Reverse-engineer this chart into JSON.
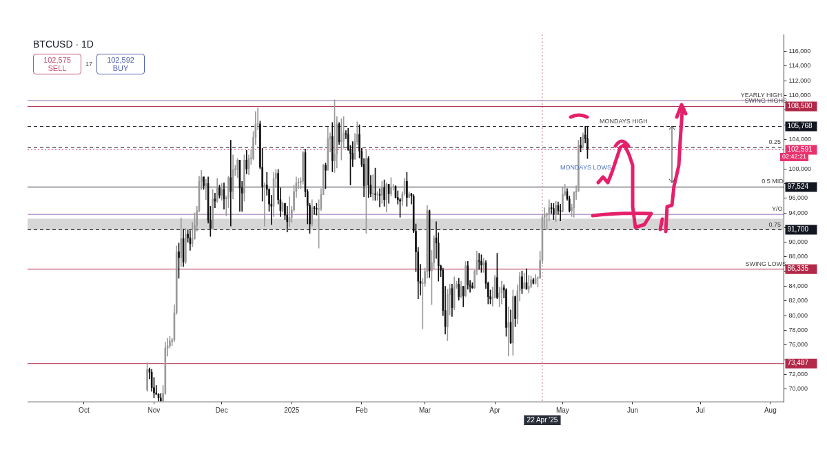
{
  "chart_data": {
    "type": "candlestick",
    "title": "BTCUSD · 1D",
    "annotations": [
      "102,575 SELL",
      "17",
      "102,592 BUY",
      "MONDAYS LOWS",
      "02:42:21",
      {
        "text": "MONDAYS HIGH",
        "x": "2025-05-28",
        "y": 105768
      },
      {
        "text": "YEARLY HIGH",
        "x": "2025-07-28",
        "y": 109300
      },
      {
        "text": "SWING HIGHS",
        "x": "2025-07-30",
        "y": 108500
      },
      {
        "text": "0.25",
        "x": "2025-08-03",
        "y": 102900
      },
      {
        "text": "0.5 MID",
        "x": "2025-08-02",
        "y": 97524
      },
      {
        "text": "Y/O",
        "x": "2025-08-04",
        "y": 93800
      },
      {
        "text": "0.75",
        "x": "2025-08-03",
        "y": 91700
      },
      {
        "text": "SWING LOWS",
        "x": "2025-07-30",
        "y": 86335
      }
    ],
    "xlim": [
      "2024-09-06",
      "2025-08-07"
    ],
    "xticks": [
      {
        "value": "2024-10-01",
        "label": "Oct"
      },
      {
        "value": "2024-11-01",
        "label": "Nov"
      },
      {
        "value": "2024-12-01",
        "label": "Dec"
      },
      {
        "value": "2025-01-01",
        "label": "2025"
      },
      {
        "value": "2025-02-01",
        "label": "Feb"
      },
      {
        "value": "2025-03-01",
        "label": "Mar"
      },
      {
        "value": "2025-04-01",
        "label": "Apr"
      },
      {
        "value": "2025-05-01",
        "label": "May"
      },
      {
        "value": "2025-06-01",
        "label": "Jun"
      },
      {
        "value": "2025-07-01",
        "label": "Jul"
      },
      {
        "value": "2025-08-01",
        "label": "Aug"
      }
    ],
    "ylim": [
      68300,
      118300
    ],
    "yticks": [
      {
        "value": 70000,
        "label": "70,000"
      },
      {
        "value": 72000,
        "label": "72,000"
      },
      {
        "value": 74000,
        "label": null
      },
      {
        "value": 76000,
        "label": "76,000"
      },
      {
        "value": 78000,
        "label": "78,000"
      },
      {
        "value": 80000,
        "label": "80,000"
      },
      {
        "value": 82000,
        "label": "82,000"
      },
      {
        "value": 84000,
        "label": "84,000"
      },
      {
        "value": 86000,
        "label": null
      },
      {
        "value": 88000,
        "label": "88,000"
      },
      {
        "value": 90000,
        "label": "90,000"
      },
      {
        "value": 92000,
        "label": null
      },
      {
        "value": 94000,
        "label": "94,000"
      },
      {
        "value": 96000,
        "label": "96,000"
      },
      {
        "value": 98000,
        "label": null
      },
      {
        "value": 100000,
        "label": "100,000"
      },
      {
        "value": 102000,
        "label": null
      },
      {
        "value": 104000,
        "label": "104,000"
      },
      {
        "value": 106000,
        "label": null
      },
      {
        "value": 108000,
        "label": null
      },
      {
        "value": 110000,
        "label": "110,000"
      },
      {
        "value": 112000,
        "label": "112,000"
      },
      {
        "value": 114000,
        "label": "114,000"
      },
      {
        "value": 116000,
        "label": "116,000"
      }
    ],
    "grid": false,
    "legend": false,
    "ref_lines": [
      {
        "axis": "y",
        "value": 109300,
        "color": "#9c6fb5",
        "line_style": "solid"
      },
      {
        "axis": "y",
        "value": 108500,
        "label": "108,500",
        "color": "#b22848",
        "line_style": "solid"
      },
      {
        "axis": "y",
        "value": 105768,
        "label": "105,768",
        "color": "#131722",
        "line_style": "dashed"
      },
      {
        "axis": "y",
        "value": 102900,
        "color": "#222222",
        "line_style": "dashed"
      },
      {
        "axis": "y",
        "value": 102591,
        "label": "102,591",
        "color": "#e8326e",
        "line_style": "dotted"
      },
      {
        "axis": "y",
        "value": 97524,
        "label": "97,524",
        "color": "#131722",
        "line_style": "solid"
      },
      {
        "axis": "y",
        "value": 93800,
        "color": "#9c6fb5",
        "line_style": "solid"
      },
      {
        "axis": "y",
        "value": 91700,
        "label": "91,700",
        "color": "#131722",
        "line_style": "dashed"
      },
      {
        "axis": "y",
        "value": 86335,
        "label": "86,335",
        "color": "#b22848",
        "line_style": "solid"
      },
      {
        "axis": "y",
        "value": 73487,
        "label": "73,487",
        "color": "#b22848",
        "line_style": "solid"
      },
      {
        "axis": "x",
        "value": "2025-04-22",
        "label": "22 Apr '25",
        "color": "#c07090",
        "line_style": "dotted"
      }
    ],
    "bands": [
      {
        "axis": "y",
        "from": 91700,
        "to": 93200,
        "color": "#d6d6d6"
      }
    ],
    "series": [
      {
        "colors": [
          "#9a9a9a",
          "#111111",
          "#111111",
          "#111111",
          "#111111",
          "#111111",
          "#111111",
          "#9a9a9a",
          "#9a9a9a",
          "#9a9a9a",
          "#9a9a9a",
          "#9a9a9a",
          "#9a9a9a",
          "#9a9a9a",
          "#111111",
          "#9a9a9a",
          "#111111",
          "#9a9a9a",
          "#111111",
          "#111111",
          "#9a9a9a",
          "#9a9a9a",
          "#9a9a9a",
          "#9a9a9a",
          "#9a9a9a",
          "#111111",
          "#9a9a9a",
          "#111111",
          "#111111",
          "#9a9a9a",
          "#111111",
          "#9a9a9a",
          "#111111",
          "#9a9a9a",
          "#111111",
          "#9a9a9a",
          "#9a9a9a",
          "#111111",
          "#9a9a9a",
          "#9a9a9a",
          "#9a9a9a",
          "#111111",
          "#111111",
          "#9a9a9a",
          "#111111",
          "#9a9a9a",
          "#9a9a9a",
          "#9a9a9a",
          "#9a9a9a",
          "#9a9a9a",
          "#111111",
          "#111111",
          "#9a9a9a",
          "#111111",
          "#111111",
          "#111111",
          "#9a9a9a",
          "#9a9a9a",
          "#111111",
          "#111111",
          "#9a9a9a",
          "#111111",
          "#111111",
          "#9a9a9a",
          "#9a9a9a",
          "#9a9a9a",
          "#9a9a9a",
          "#9a9a9a",
          "#9a9a9a",
          "#9a9a9a",
          "#111111",
          "#111111",
          "#111111",
          "#9a9a9a",
          "#111111",
          "#111111",
          "#9a9a9a",
          "#9a9a9a",
          "#9a9a9a",
          "#111111",
          "#9a9a9a",
          "#9a9a9a",
          "#111111",
          "#9a9a9a",
          "#9a9a9a",
          "#111111",
          "#9a9a9a",
          "#9a9a9a",
          "#111111",
          "#111111",
          "#111111",
          "#111111",
          "#9a9a9a",
          "#9a9a9a",
          "#111111",
          "#111111",
          "#111111",
          "#9a9a9a",
          "#111111",
          "#111111",
          "#9a9a9a",
          "#111111",
          "#9a9a9a",
          "#111111",
          "#9a9a9a",
          "#111111",
          "#9a9a9a",
          "#111111",
          "#9a9a9a",
          "#9a9a9a",
          "#111111",
          "#111111",
          "#111111",
          "#9a9a9a",
          "#9a9a9a",
          "#111111",
          "#9a9a9a",
          "#111111",
          "#111111",
          "#111111",
          "#111111",
          "#111111",
          "#9a9a9a",
          "#9a9a9a",
          "#9a9a9a",
          "#111111",
          "#9a9a9a",
          "#9a9a9a",
          "#111111",
          "#111111",
          "#111111",
          "#111111",
          "#111111",
          "#9a9a9a",
          "#9a9a9a",
          "#111111",
          "#9a9a9a",
          "#9a9a9a",
          "#111111",
          "#9a9a9a",
          "#111111",
          "#9a9a9a",
          "#111111",
          "#111111",
          "#111111",
          "#9a9a9a",
          "#9a9a9a",
          "#111111",
          "#111111",
          "#9a9a9a",
          "#111111",
          "#111111",
          "#111111",
          "#9a9a9a",
          "#9a9a9a",
          "#111111",
          "#9a9a9a",
          "#9a9a9a",
          "#111111",
          "#111111",
          "#9a9a9a",
          "#111111",
          "#9a9a9a",
          "#111111",
          "#9a9a9a",
          "#9a9a9a",
          "#111111",
          "#9a9a9a",
          "#111111",
          "#9a9a9a",
          "#9a9a9a",
          "#111111",
          "#9a9a9a",
          "#9a9a9a",
          "#9a9a9a",
          "#9a9a9a",
          "#9a9a9a",
          "#9a9a9a",
          "#9a9a9a",
          "#111111",
          "#111111",
          "#9a9a9a",
          "#111111",
          "#111111",
          "#9a9a9a",
          "#9a9a9a",
          "#111111",
          "#111111",
          "#9a9a9a",
          "#9a9a9a",
          "#9a9a9a",
          "#9a9a9a",
          "#111111",
          "#9a9a9a",
          "#111111",
          "#111111"
        ],
        "x": [
          "2024-10-29",
          "2024-10-30",
          "2024-10-31",
          "2024-11-01",
          "2024-11-02",
          "2024-11-03",
          "2024-11-04",
          "2024-11-05",
          "2024-11-06",
          "2024-11-07",
          "2024-11-08",
          "2024-11-09",
          "2024-11-10",
          "2024-11-11",
          "2024-11-12",
          "2024-11-13",
          "2024-11-14",
          "2024-11-15",
          "2024-11-16",
          "2024-11-17",
          "2024-11-18",
          "2024-11-19",
          "2024-11-20",
          "2024-11-21",
          "2024-11-22",
          "2024-11-23",
          "2024-11-24",
          "2024-11-25",
          "2024-11-26",
          "2024-11-27",
          "2024-11-28",
          "2024-11-29",
          "2024-11-30",
          "2024-12-01",
          "2024-12-02",
          "2024-12-03",
          "2024-12-04",
          "2024-12-05",
          "2024-12-06",
          "2024-12-07",
          "2024-12-08",
          "2024-12-09",
          "2024-12-10",
          "2024-12-11",
          "2024-12-12",
          "2024-12-13",
          "2024-12-14",
          "2024-12-15",
          "2024-12-16",
          "2024-12-17",
          "2024-12-18",
          "2024-12-19",
          "2024-12-20",
          "2024-12-21",
          "2024-12-22",
          "2024-12-23",
          "2024-12-24",
          "2024-12-25",
          "2024-12-26",
          "2024-12-27",
          "2024-12-28",
          "2024-12-29",
          "2024-12-30",
          "2024-12-31",
          "2025-01-01",
          "2025-01-02",
          "2025-01-03",
          "2025-01-04",
          "2025-01-05",
          "2025-01-06",
          "2025-01-07",
          "2025-01-08",
          "2025-01-09",
          "2025-01-10",
          "2025-01-11",
          "2025-01-12",
          "2025-01-13",
          "2025-01-14",
          "2025-01-15",
          "2025-01-16",
          "2025-01-17",
          "2025-01-18",
          "2025-01-19",
          "2025-01-20",
          "2025-01-21",
          "2025-01-22",
          "2025-01-23",
          "2025-01-24",
          "2025-01-25",
          "2025-01-26",
          "2025-01-27",
          "2025-01-28",
          "2025-01-29",
          "2025-01-30",
          "2025-01-31",
          "2025-02-01",
          "2025-02-02",
          "2025-02-03",
          "2025-02-04",
          "2025-02-05",
          "2025-02-06",
          "2025-02-07",
          "2025-02-08",
          "2025-02-09",
          "2025-02-10",
          "2025-02-11",
          "2025-02-12",
          "2025-02-13",
          "2025-02-14",
          "2025-02-15",
          "2025-02-16",
          "2025-02-17",
          "2025-02-18",
          "2025-02-19",
          "2025-02-20",
          "2025-02-21",
          "2025-02-22",
          "2025-02-23",
          "2025-02-24",
          "2025-02-25",
          "2025-02-26",
          "2025-02-27",
          "2025-02-28",
          "2025-03-01",
          "2025-03-02",
          "2025-03-03",
          "2025-03-04",
          "2025-03-05",
          "2025-03-06",
          "2025-03-07",
          "2025-03-08",
          "2025-03-09",
          "2025-03-10",
          "2025-03-11",
          "2025-03-12",
          "2025-03-13",
          "2025-03-14",
          "2025-03-15",
          "2025-03-16",
          "2025-03-17",
          "2025-03-18",
          "2025-03-19",
          "2025-03-20",
          "2025-03-21",
          "2025-03-22",
          "2025-03-23",
          "2025-03-24",
          "2025-03-25",
          "2025-03-26",
          "2025-03-27",
          "2025-03-28",
          "2025-03-29",
          "2025-03-30",
          "2025-03-31",
          "2025-04-01",
          "2025-04-02",
          "2025-04-03",
          "2025-04-04",
          "2025-04-05",
          "2025-04-06",
          "2025-04-07",
          "2025-04-08",
          "2025-04-09",
          "2025-04-10",
          "2025-04-11",
          "2025-04-12",
          "2025-04-13",
          "2025-04-14",
          "2025-04-15",
          "2025-04-16",
          "2025-04-17",
          "2025-04-18",
          "2025-04-19",
          "2025-04-20",
          "2025-04-21",
          "2025-04-22",
          "2025-04-23",
          "2025-04-24",
          "2025-04-25",
          "2025-04-26",
          "2025-04-27",
          "2025-04-28",
          "2025-04-29",
          "2025-04-30",
          "2025-05-01",
          "2025-05-02",
          "2025-05-03",
          "2025-05-04",
          "2025-05-05",
          "2025-05-06",
          "2025-05-07",
          "2025-05-08",
          "2025-05-09",
          "2025-05-10",
          "2025-05-11",
          "2025-05-12"
        ],
        "ohlc": [
          [
            69900,
            73600,
            69700,
            72700
          ],
          [
            72700,
            72900,
            71400,
            72300
          ],
          [
            72300,
            72700,
            69700,
            70200
          ],
          [
            70200,
            71600,
            68800,
            69500
          ],
          [
            69500,
            70500,
            69300,
            69300
          ],
          [
            69300,
            69400,
            68400,
            68800
          ],
          [
            68800,
            69400,
            68400,
            68400
          ],
          [
            68400,
            70500,
            68400,
            69400
          ],
          [
            69400,
            76400,
            69300,
            75600
          ],
          [
            75600,
            76900,
            74500,
            75900
          ],
          [
            75900,
            77200,
            75600,
            76500
          ],
          [
            76500,
            76900,
            75900,
            76700
          ],
          [
            76700,
            81500,
            76500,
            80400
          ],
          [
            80400,
            89500,
            80200,
            88700
          ],
          [
            88700,
            89900,
            85100,
            87900
          ],
          [
            87900,
            93300,
            86700,
            90500
          ],
          [
            90500,
            91800,
            86700,
            87300
          ],
          [
            87300,
            91900,
            87100,
            91100
          ],
          [
            91100,
            91700,
            90000,
            90600
          ],
          [
            90600,
            91600,
            88900,
            89800
          ],
          [
            89800,
            92700,
            89400,
            90500
          ],
          [
            90500,
            94000,
            90400,
            92300
          ],
          [
            92300,
            94900,
            91500,
            94300
          ],
          [
            94300,
            99000,
            94100,
            98300
          ],
          [
            98300,
            99800,
            97200,
            98900
          ],
          [
            98900,
            98900,
            97200,
            97700
          ],
          [
            97700,
            98600,
            95800,
            98000
          ],
          [
            98000,
            98900,
            92600,
            93000
          ],
          [
            93000,
            94900,
            90800,
            91900
          ],
          [
            91900,
            97200,
            91800,
            95900
          ],
          [
            95900,
            96700,
            94700,
            95600
          ],
          [
            95600,
            98700,
            95400,
            97400
          ],
          [
            97400,
            97800,
            96000,
            96400
          ],
          [
            96400,
            98000,
            95700,
            97200
          ],
          [
            97200,
            98100,
            94500,
            95900
          ],
          [
            95900,
            96300,
            93600,
            96000
          ],
          [
            96000,
            99000,
            94700,
            98800
          ],
          [
            98800,
            103900,
            92200,
            96900
          ],
          [
            96900,
            101900,
            95900,
            99900
          ],
          [
            99900,
            100500,
            99100,
            99900
          ],
          [
            99900,
            101400,
            98800,
            101200
          ],
          [
            101200,
            101200,
            94200,
            97400
          ],
          [
            97400,
            98300,
            94200,
            96700
          ],
          [
            96700,
            101900,
            95600,
            101200
          ],
          [
            101200,
            102500,
            99300,
            100000
          ],
          [
            100000,
            101900,
            99200,
            101400
          ],
          [
            101400,
            102600,
            100600,
            101400
          ],
          [
            101400,
            105100,
            101200,
            104300
          ],
          [
            104300,
            107800,
            103300,
            106100
          ],
          [
            106100,
            108300,
            105300,
            106100
          ],
          [
            106100,
            106500,
            100000,
            100200
          ],
          [
            100200,
            102800,
            95600,
            97500
          ],
          [
            97500,
            98100,
            92200,
            97800
          ],
          [
            97800,
            99500,
            96400,
            97200
          ],
          [
            97200,
            97300,
            94200,
            95200
          ],
          [
            95200,
            96400,
            92400,
            94900
          ],
          [
            94900,
            99500,
            93500,
            98700
          ],
          [
            98700,
            99900,
            97600,
            99400
          ],
          [
            99400,
            99900,
            95200,
            95800
          ],
          [
            95800,
            97400,
            93500,
            94300
          ],
          [
            94300,
            95500,
            94100,
            95300
          ],
          [
            95300,
            95300,
            93100,
            93700
          ],
          [
            93700,
            94900,
            91400,
            92800
          ],
          [
            92800,
            96200,
            92100,
            93400
          ],
          [
            93400,
            94900,
            92700,
            94400
          ],
          [
            94400,
            97800,
            94200,
            96900
          ],
          [
            96900,
            98900,
            96100,
            98100
          ],
          [
            98100,
            98700,
            97300,
            98200
          ],
          [
            98200,
            98800,
            97300,
            98300
          ],
          [
            98300,
            102400,
            97900,
            102200
          ],
          [
            102200,
            102700,
            96200,
            96900
          ],
          [
            96900,
            97200,
            92500,
            95000
          ],
          [
            95000,
            95300,
            91200,
            92500
          ],
          [
            92500,
            95800,
            92200,
            94700
          ],
          [
            94700,
            94900,
            93800,
            94600
          ],
          [
            94600,
            95300,
            93700,
            94500
          ],
          [
            94500,
            95800,
            89200,
            94500
          ],
          [
            94500,
            97300,
            94300,
            96500
          ],
          [
            96500,
            100600,
            96500,
            100500
          ],
          [
            100500,
            100800,
            97300,
            99800
          ],
          [
            99800,
            105700,
            99800,
            104100
          ],
          [
            104100,
            104900,
            102300,
            104400
          ],
          [
            104400,
            106300,
            99600,
            101100
          ],
          [
            101100,
            109400,
            99500,
            102000
          ],
          [
            102000,
            107100,
            100100,
            106100
          ],
          [
            106100,
            106300,
            103300,
            103700
          ],
          [
            103700,
            106800,
            101200,
            103900
          ],
          [
            103900,
            107100,
            102800,
            104800
          ],
          [
            104800,
            105200,
            104100,
            104700
          ],
          [
            104700,
            105500,
            102500,
            102600
          ],
          [
            102600,
            103200,
            97800,
            102100
          ],
          [
            102100,
            103700,
            100300,
            101300
          ],
          [
            101300,
            104800,
            101300,
            103700
          ],
          [
            103700,
            106400,
            103300,
            104700
          ],
          [
            104700,
            106000,
            101500,
            102400
          ],
          [
            102400,
            102800,
            100300,
            100600
          ],
          [
            100600,
            101400,
            96200,
            97700
          ],
          [
            97700,
            102500,
            91200,
            101400
          ],
          [
            101400,
            101700,
            96100,
            97800
          ],
          [
            97800,
            99100,
            96200,
            96600
          ],
          [
            96600,
            99200,
            95700,
            96600
          ],
          [
            96600,
            100100,
            95700,
            96500
          ],
          [
            96500,
            96900,
            95700,
            96500
          ],
          [
            96500,
            97300,
            94800,
            96400
          ],
          [
            96400,
            98300,
            95300,
            97400
          ],
          [
            97400,
            98500,
            94900,
            95800
          ],
          [
            95800,
            98100,
            94100,
            97900
          ],
          [
            97900,
            97900,
            95300,
            96600
          ],
          [
            96600,
            98800,
            96300,
            97500
          ],
          [
            97500,
            97900,
            97100,
            97600
          ],
          [
            97600,
            97700,
            96000,
            96100
          ],
          [
            96100,
            97000,
            95200,
            95800
          ],
          [
            95800,
            96000,
            93400,
            95600
          ],
          [
            95600,
            96900,
            95000,
            96600
          ],
          [
            96600,
            98700,
            96400,
            98300
          ],
          [
            98300,
            99500,
            94900,
            96100
          ],
          [
            96100,
            96900,
            96100,
            96600
          ],
          [
            96600,
            96700,
            95200,
            96300
          ],
          [
            96300,
            96500,
            91300,
            91500
          ],
          [
            91500,
            92500,
            86000,
            88700
          ],
          [
            88700,
            89300,
            82300,
            84700
          ],
          [
            84700,
            87000,
            82800,
            84400
          ],
          [
            84400,
            85100,
            78200,
            84400
          ],
          [
            84400,
            86500,
            84000,
            86000
          ],
          [
            86000,
            95000,
            85100,
            94300
          ],
          [
            94300,
            94400,
            85200,
            86100
          ],
          [
            86100,
            88900,
            81500,
            87200
          ],
          [
            87200,
            90900,
            86400,
            90600
          ],
          [
            90600,
            92800,
            87800,
            89900
          ],
          [
            89900,
            91300,
            84700,
            86800
          ],
          [
            86800,
            86900,
            85300,
            86200
          ],
          [
            86200,
            86500,
            80000,
            80700
          ],
          [
            80700,
            84000,
            77500,
            78500
          ],
          [
            78500,
            83600,
            76600,
            82900
          ],
          [
            82900,
            84300,
            80100,
            83700
          ],
          [
            83700,
            84300,
            79900,
            81100
          ],
          [
            81100,
            85300,
            80800,
            83900
          ],
          [
            83900,
            84700,
            83700,
            84300
          ],
          [
            84300,
            85100,
            82100,
            82600
          ],
          [
            82600,
            84700,
            82400,
            84000
          ],
          [
            84000,
            84000,
            81200,
            82700
          ],
          [
            82700,
            87400,
            82600,
            86800
          ],
          [
            86800,
            87400,
            83600,
            84200
          ],
          [
            84200,
            84800,
            83200,
            84000
          ],
          [
            84000,
            84500,
            83700,
            83800
          ],
          [
            83800,
            86200,
            83700,
            86100
          ],
          [
            86100,
            88800,
            85600,
            87500
          ],
          [
            87500,
            88500,
            86300,
            87400
          ],
          [
            87400,
            88300,
            85900,
            86900
          ],
          [
            86900,
            87800,
            85900,
            87200
          ],
          [
            87200,
            87500,
            83700,
            84400
          ],
          [
            84400,
            84600,
            81600,
            82600
          ],
          [
            82600,
            83500,
            81600,
            82300
          ],
          [
            82300,
            83900,
            81300,
            82500
          ],
          [
            82500,
            85500,
            82400,
            85200
          ],
          [
            85200,
            88500,
            82300,
            82500
          ],
          [
            82500,
            83900,
            81200,
            83100
          ],
          [
            83100,
            84700,
            81600,
            83800
          ],
          [
            83800,
            84200,
            82400,
            83500
          ],
          [
            83500,
            83700,
            77200,
            78400
          ],
          [
            78400,
            81200,
            74500,
            79100
          ],
          [
            79100,
            80800,
            76200,
            76300
          ],
          [
            76300,
            83500,
            74600,
            82600
          ],
          [
            82600,
            82700,
            78500,
            79600
          ],
          [
            79600,
            84200,
            78900,
            83400
          ],
          [
            83400,
            85900,
            82000,
            85300
          ],
          [
            85300,
            86100,
            83000,
            83700
          ],
          [
            83700,
            85800,
            83700,
            84500
          ],
          [
            84500,
            86400,
            83600,
            83600
          ],
          [
            83600,
            85500,
            83100,
            84000
          ],
          [
            84000,
            85400,
            83800,
            84900
          ],
          [
            84900,
            85100,
            84300,
            84400
          ],
          [
            84400,
            85600,
            84300,
            85100
          ],
          [
            85100,
            85300,
            83900,
            85100
          ],
          [
            85100,
            88800,
            85100,
            87500
          ],
          [
            87500,
            93800,
            87100,
            93400
          ],
          [
            93400,
            94700,
            91900,
            93700
          ],
          [
            93700,
            94000,
            91700,
            93900
          ],
          [
            93900,
            95800,
            92900,
            94700
          ],
          [
            94700,
            95300,
            93900,
            94600
          ],
          [
            94600,
            95300,
            93100,
            93800
          ],
          [
            93800,
            95600,
            92800,
            95000
          ],
          [
            95000,
            95500,
            93800,
            94300
          ],
          [
            94300,
            95200,
            92900,
            94200
          ],
          [
            94200,
            97400,
            94100,
            96500
          ],
          [
            96500,
            97900,
            96300,
            96900
          ],
          [
            96900,
            97300,
            95700,
            95900
          ],
          [
            95900,
            96300,
            94100,
            94300
          ],
          [
            94300,
            95200,
            93500,
            94700
          ],
          [
            94700,
            96900,
            93400,
            96800
          ],
          [
            96800,
            97700,
            95800,
            97000
          ],
          [
            97000,
            103900,
            96900,
            103200
          ],
          [
            103200,
            104300,
            102300,
            102900
          ],
          [
            102900,
            104900,
            102800,
            104600
          ],
          [
            104600,
            105800,
            103500,
            104100
          ],
          [
            104100,
            105800,
            101400,
            102600
          ]
        ]
      }
    ]
  }
}
